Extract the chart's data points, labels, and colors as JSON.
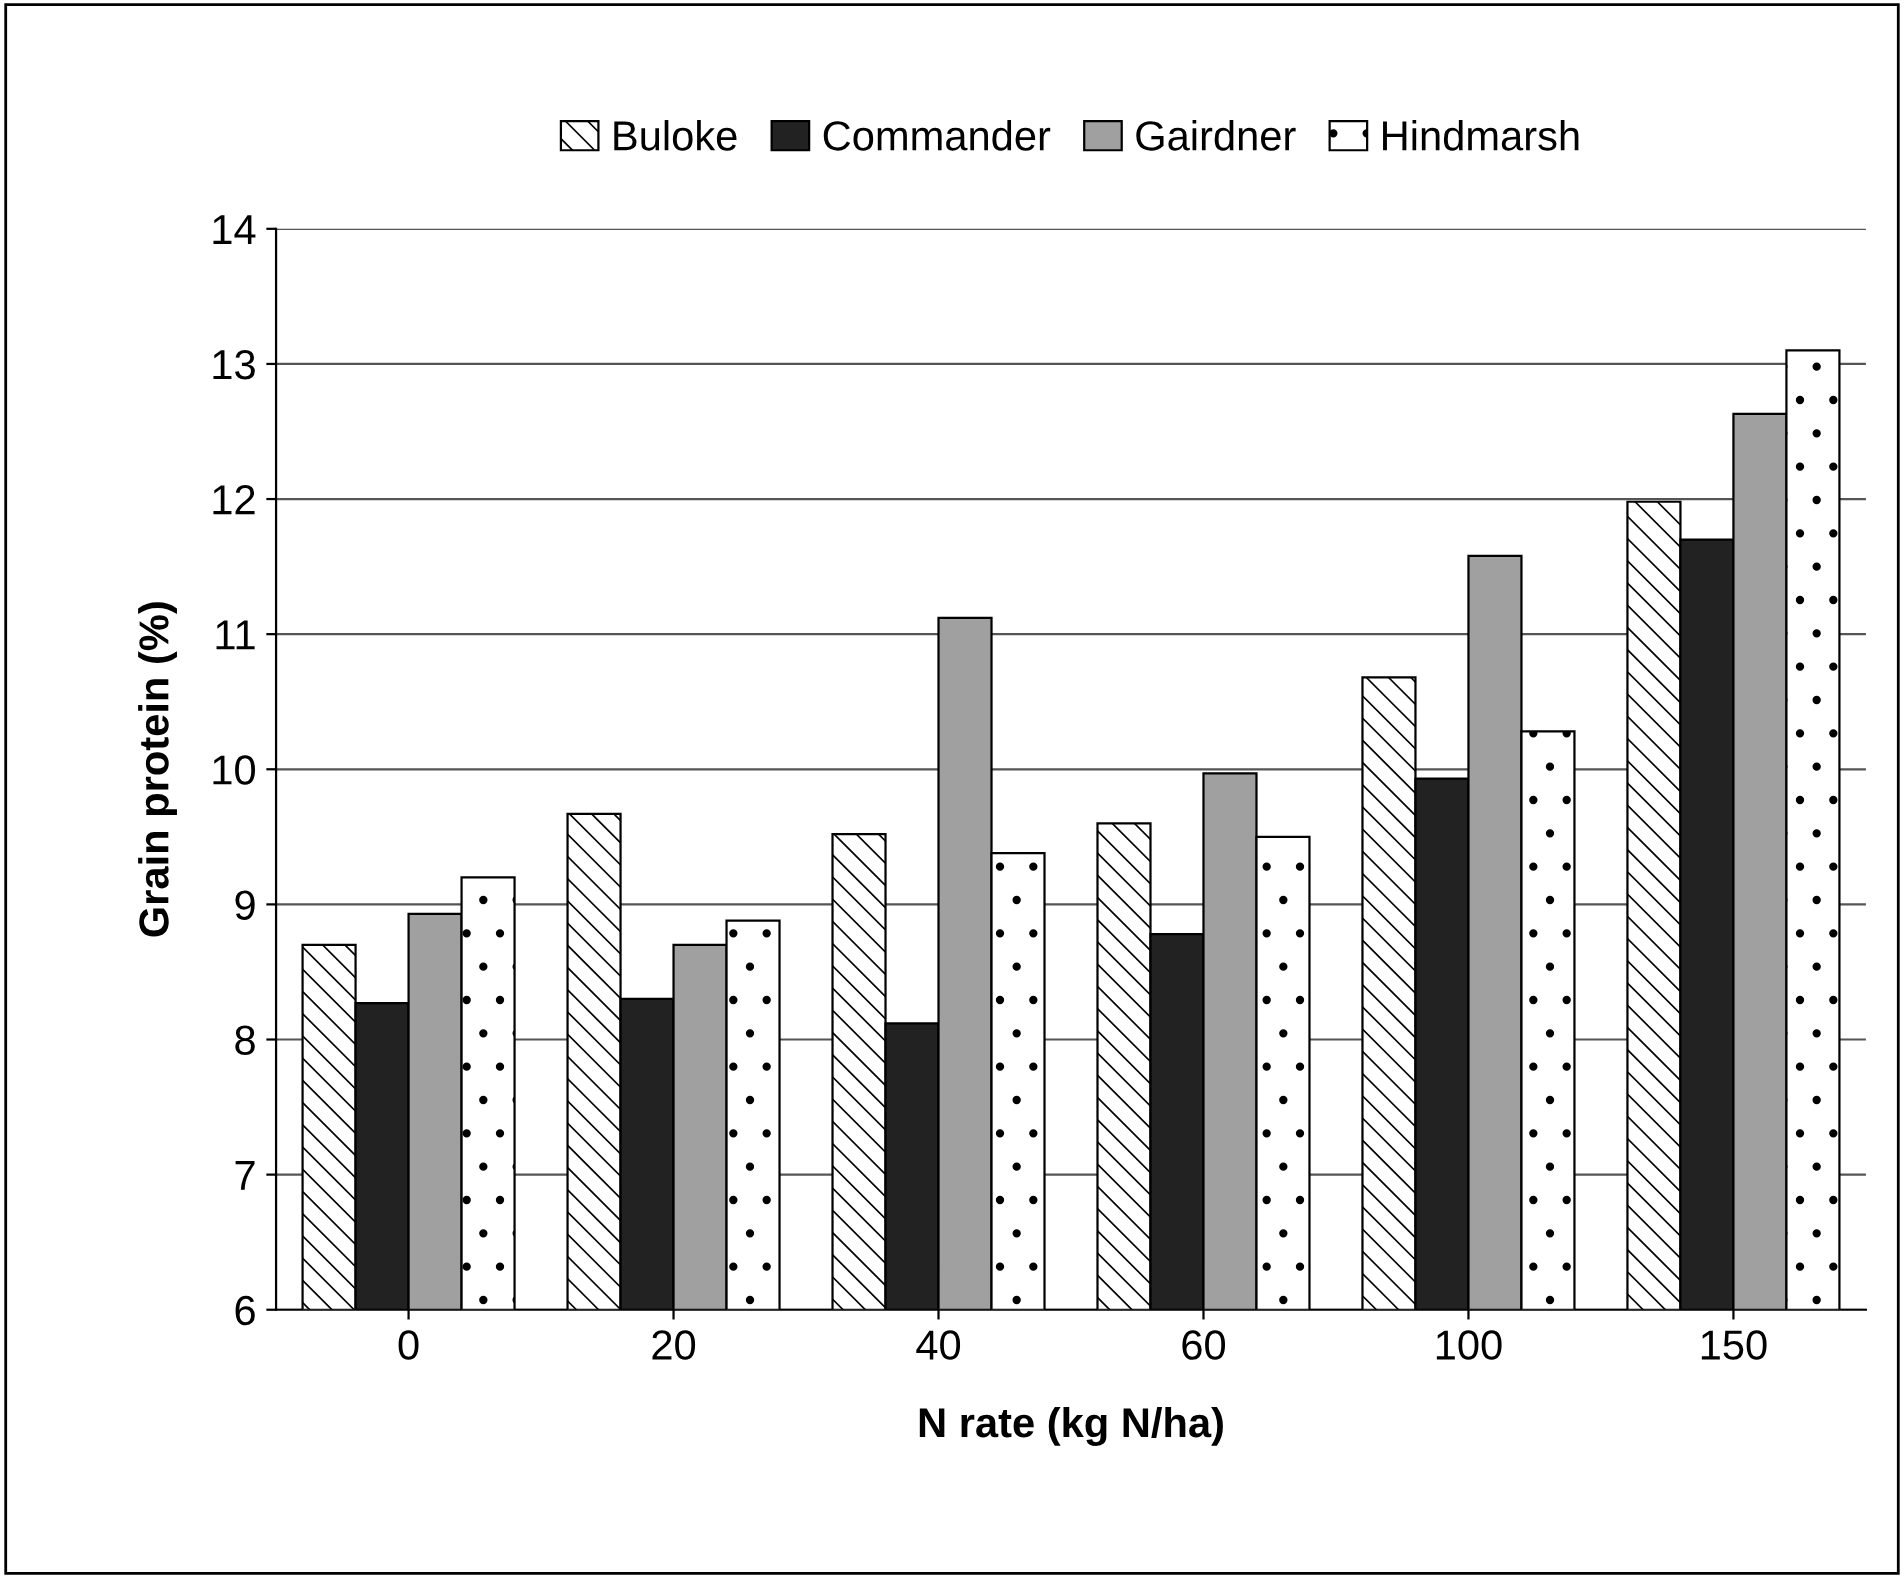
{
  "chart_data": {
    "type": "bar",
    "xlabel": "N rate (kg N/ha)",
    "ylabel": "Grain protein (%)",
    "categories": [
      "0",
      "20",
      "40",
      "60",
      "100",
      "150"
    ],
    "series": [
      {
        "name": "Buloke",
        "color": "#ffffff",
        "values": [
          8.7,
          9.67,
          9.52,
          9.6,
          10.68,
          11.98
        ]
      },
      {
        "name": "Commander",
        "color": "#222222",
        "values": [
          8.27,
          8.3,
          8.12,
          8.78,
          9.93,
          11.7
        ]
      },
      {
        "name": "Gairdner",
        "color": "#a0a0a0",
        "values": [
          8.93,
          8.7,
          11.12,
          9.97,
          11.58,
          12.63
        ]
      },
      {
        "name": "Hindmarsh",
        "color": "#ffffff",
        "values": [
          9.2,
          8.88,
          9.38,
          9.5,
          10.28,
          13.1
        ]
      }
    ],
    "ylim": [
      6,
      14
    ],
    "yticks": [
      6,
      7,
      8,
      9,
      10,
      11,
      12,
      13,
      14
    ],
    "grid": "y",
    "legend": "top"
  }
}
